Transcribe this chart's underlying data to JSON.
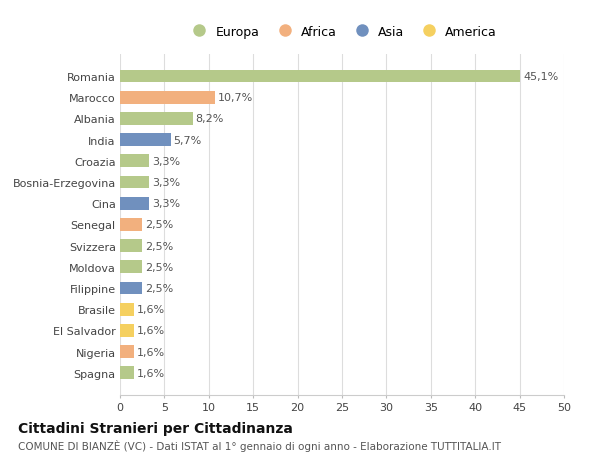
{
  "countries": [
    "Romania",
    "Marocco",
    "Albania",
    "India",
    "Croazia",
    "Bosnia-Erzegovina",
    "Cina",
    "Senegal",
    "Svizzera",
    "Moldova",
    "Filippine",
    "Brasile",
    "El Salvador",
    "Nigeria",
    "Spagna"
  ],
  "values": [
    45.1,
    10.7,
    8.2,
    5.7,
    3.3,
    3.3,
    3.3,
    2.5,
    2.5,
    2.5,
    2.5,
    1.6,
    1.6,
    1.6,
    1.6
  ],
  "labels": [
    "45,1%",
    "10,7%",
    "8,2%",
    "5,7%",
    "3,3%",
    "3,3%",
    "3,3%",
    "2,5%",
    "2,5%",
    "2,5%",
    "2,5%",
    "1,6%",
    "1,6%",
    "1,6%",
    "1,6%"
  ],
  "continents": [
    "Europa",
    "Africa",
    "Europa",
    "Asia",
    "Europa",
    "Europa",
    "Asia",
    "Africa",
    "Europa",
    "Europa",
    "Asia",
    "America",
    "America",
    "Africa",
    "Europa"
  ],
  "colors": {
    "Europa": "#b5c98a",
    "Africa": "#f2b07e",
    "Asia": "#7090be",
    "America": "#f5d060"
  },
  "title": "Cittadini Stranieri per Cittadinanza",
  "subtitle": "COMUNE DI BIANZÈ (VC) - Dati ISTAT al 1° gennaio di ogni anno - Elaborazione TUTTITALIA.IT",
  "xlim": [
    0,
    50
  ],
  "xticks": [
    0,
    5,
    10,
    15,
    20,
    25,
    30,
    35,
    40,
    45,
    50
  ],
  "bg_color": "#ffffff",
  "plot_bg_color": "#ffffff",
  "grid_color": "#dddddd",
  "bar_height": 0.6,
  "label_fontsize": 8,
  "tick_fontsize": 8,
  "title_fontsize": 10,
  "subtitle_fontsize": 7.5
}
